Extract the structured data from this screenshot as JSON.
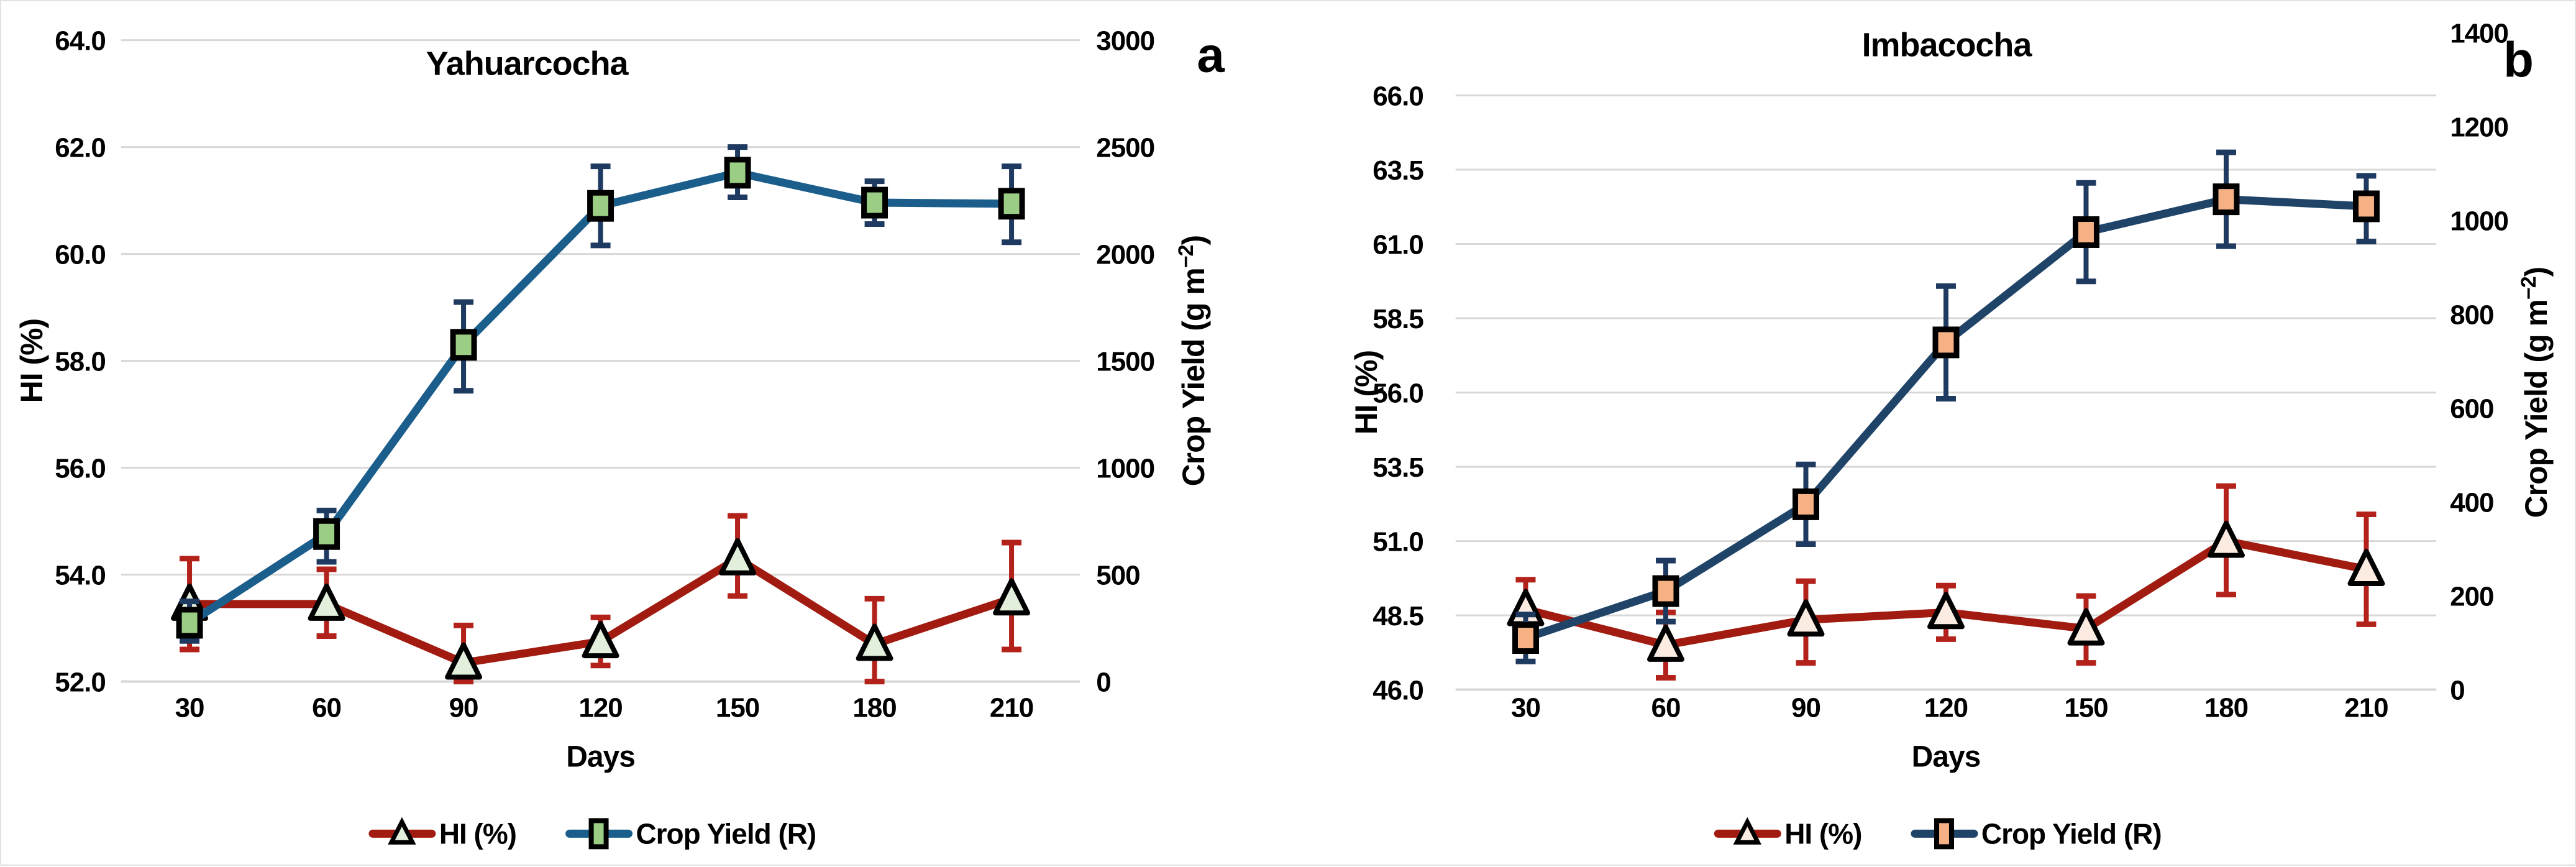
{
  "figure_title": "",
  "chart_data": [
    {
      "type": "line",
      "panel_letter": "a",
      "title": "Yahuarcocha",
      "xlabel": "Days",
      "categories": [
        30,
        60,
        90,
        120,
        150,
        180,
        210
      ],
      "axes": {
        "left": {
          "label": "HI (%)",
          "min": 52.0,
          "max": 64.0,
          "tick_values": [
            52,
            54,
            56,
            58,
            60,
            62,
            64
          ],
          "tick_labels": [
            "52.0",
            "54.0",
            "56.0",
            "58.0",
            "60.0",
            "62.0",
            "64.0"
          ]
        },
        "right": {
          "label": "Crop Yield (g m⁻²)",
          "label_parts": [
            "Crop Yield (g m",
            "−2",
            ")"
          ],
          "min": 0,
          "max": 3000,
          "tick_values": [
            0,
            500,
            1000,
            1500,
            2000,
            2500,
            3000
          ],
          "aligned_with_left": true
        }
      },
      "series": [
        {
          "id": "hi",
          "name": "HI (%)",
          "axis": "left",
          "marker": "triangle",
          "line_color": "#A21B10",
          "err_color": "#B3221A",
          "marker_fill": "#E2EFDC",
          "values": [
            53.45,
            53.45,
            52.35,
            52.75,
            54.3,
            52.7,
            53.55
          ],
          "err_lo": [
            52.6,
            52.85,
            52.0,
            52.3,
            53.6,
            52.0,
            52.6
          ],
          "err_hi": [
            54.3,
            54.1,
            53.05,
            53.2,
            55.1,
            53.55,
            54.6
          ]
        },
        {
          "id": "yield",
          "name": "Crop Yield (R)",
          "axis": "right",
          "marker": "square",
          "line_color": "#1B5E8C",
          "err_color": "#1F3A60",
          "marker_fill": "#9BCD85",
          "values": [
            275,
            690,
            1575,
            2225,
            2380,
            2240,
            2235
          ],
          "err_lo": [
            190,
            560,
            1360,
            2040,
            2265,
            2140,
            2055
          ],
          "err_hi": [
            375,
            800,
            1775,
            2410,
            2500,
            2340,
            2410
          ]
        }
      ],
      "legend": [
        "HI (%)",
        "Crop Yield (R)"
      ]
    },
    {
      "type": "line",
      "panel_letter": "b",
      "title": "Imbacocha",
      "xlabel": "Days",
      "categories": [
        30,
        60,
        90,
        120,
        150,
        180,
        210
      ],
      "axes": {
        "left": {
          "label": "HI (%)",
          "min": 46.0,
          "max": 66.0,
          "tick_values": [
            46,
            48.5,
            51,
            53.5,
            56,
            58.5,
            61,
            63.5,
            66
          ],
          "tick_labels": [
            "46.0",
            "48.5",
            "51.0",
            "53.5",
            "56.0",
            "58.5",
            "61.0",
            "63.5",
            "66.0"
          ]
        },
        "right": {
          "label": "Crop Yield (g m⁻²)",
          "label_parts": [
            "Crop Yield (g m",
            "−2",
            ")"
          ],
          "min": 0,
          "max": 1400,
          "tick_values": [
            0,
            200,
            400,
            600,
            800,
            1000,
            1200,
            1400
          ],
          "aligned_with_left": false
        }
      },
      "series": [
        {
          "id": "hi",
          "name": "HI (%)",
          "axis": "left",
          "marker": "triangle",
          "line_color": "#A21B10",
          "err_color": "#B3221A",
          "marker_fill": "#FBEBE1",
          "values": [
            48.7,
            47.5,
            48.35,
            48.6,
            48.05,
            51.0,
            50.05
          ],
          "err_lo": [
            47.7,
            46.4,
            46.9,
            47.7,
            46.9,
            49.2,
            48.2
          ],
          "err_hi": [
            49.7,
            48.6,
            49.65,
            49.5,
            49.15,
            52.85,
            51.9
          ]
        },
        {
          "id": "yield",
          "name": "Crop Yield (R)",
          "axis": "right",
          "marker": "square",
          "line_color": "#1F4468",
          "err_color": "#1F3A60",
          "marker_fill": "#F5B183",
          "values": [
            110,
            210,
            395,
            740,
            975,
            1045,
            1030
          ],
          "err_lo": [
            60,
            145,
            310,
            620,
            870,
            945,
            955
          ],
          "err_hi": [
            160,
            275,
            480,
            860,
            1080,
            1145,
            1095
          ]
        }
      ],
      "legend": [
        "HI (%)",
        "Crop Yield (R)"
      ]
    }
  ],
  "styles": {
    "gridline_color": "#D8D8D8",
    "marker_stroke": "#000000",
    "text_color": "#000000"
  }
}
